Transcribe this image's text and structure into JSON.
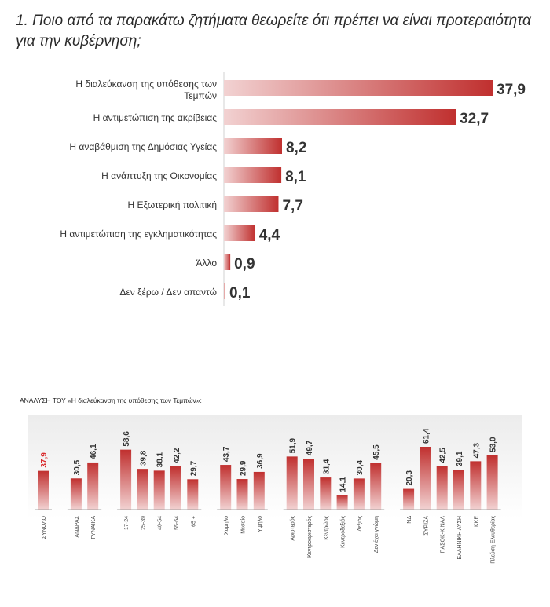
{
  "title": "1. Ποιο από τα παρακάτω ζητήματα θεωρείτε ότι πρέπει να είναι προτεραιότητα για την κυβέρνηση;",
  "colors": {
    "bar_dark": "#c0302f",
    "bar_light": "#f2d2d2",
    "highlight_label": "#d9282a",
    "text": "#333333"
  },
  "chart_data": [
    {
      "type": "bar",
      "orientation": "horizontal",
      "categories": [
        "Η διαλεύκανση της υπόθεσης  των Τεμπών",
        "Η αντιμετώπιση της ακρίβειας",
        "Η αναβάθμιση της Δημόσιας Υγείας",
        "Η ανάπτυξη της Οικονομίας",
        "Η Εξωτερική πολιτική",
        "Η αντιμετώπιση της εγκληματικότητας",
        "Άλλο",
        "Δεν ξέρω / Δεν απαντώ"
      ],
      "values": [
        37.9,
        32.7,
        8.2,
        8.1,
        7.7,
        4.4,
        0.9,
        0.1
      ],
      "value_labels": [
        "37,9",
        "32,7",
        "8,2",
        "8,1",
        "7,7",
        "4,4",
        "0,9",
        "0,1"
      ],
      "xlim": [
        0,
        37.9
      ],
      "grid": false,
      "legend": "none"
    },
    {
      "type": "bar",
      "orientation": "vertical",
      "title": "ΑΝΑΛΥΣΗ ΤΟΥ «Η διαλεύκανση της υπόθεσης  των Τεμπών»:",
      "groups": [
        {
          "categories": [
            "ΣΥΝΟΛΟ"
          ],
          "values": [
            37.9
          ],
          "value_labels": [
            "37,9"
          ],
          "highlight": true
        },
        {
          "categories": [
            "ΑΝΔΡΑΣ",
            "ΓΥΝΑΙΚΑ"
          ],
          "values": [
            30.5,
            46.1
          ],
          "value_labels": [
            "30,5",
            "46,1"
          ]
        },
        {
          "categories": [
            "17-24",
            "25-39",
            "40-54",
            "55-64",
            "65 +"
          ],
          "values": [
            58.6,
            39.8,
            38.1,
            42.2,
            29.7
          ],
          "value_labels": [
            "58,6",
            "39,8",
            "38,1",
            "42,2",
            "29,7"
          ]
        },
        {
          "categories": [
            "Χαμηλό",
            "Μεσαίο",
            "Υψηλό"
          ],
          "values": [
            43.7,
            29.9,
            36.9
          ],
          "value_labels": [
            "43,7",
            "29,9",
            "36,9"
          ]
        },
        {
          "categories": [
            "Αριστερός",
            "Κεντροαριστερός",
            "Κεντρώος",
            "Κεντροδεξιός",
            "Δεξιός",
            "Δεν έχει γνώμη"
          ],
          "values": [
            51.9,
            49.7,
            31.4,
            14.1,
            30.4,
            45.5
          ],
          "value_labels": [
            "51,9",
            "49,7",
            "31,4",
            "14,1",
            "30,4",
            "45,5"
          ]
        },
        {
          "categories": [
            "ΝΔ",
            "ΣΥΡΙΖΑ",
            "ΠΑΣΟΚ-ΚΙΝΑΛ",
            "ΕΛΛΗΝΙΚΗ ΛΥΣΗ",
            "ΚΚΕ",
            "Πλεύση Ελευθερίας"
          ],
          "values": [
            20.3,
            61.4,
            42.5,
            39.1,
            47.3,
            53.0
          ],
          "value_labels": [
            "20,3",
            "61,4",
            "42,5",
            "39,1",
            "47,3",
            "53,0"
          ]
        }
      ],
      "ylim": [
        0,
        61.4
      ],
      "grid": false,
      "legend": "none"
    }
  ]
}
